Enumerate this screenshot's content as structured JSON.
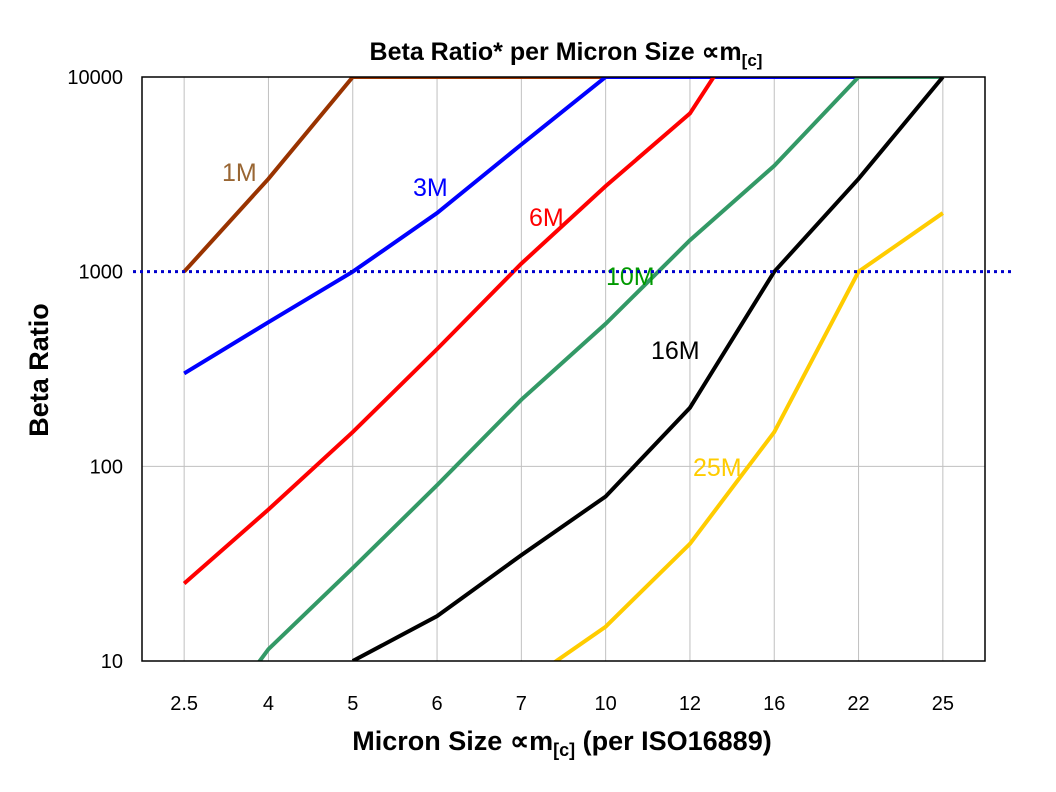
{
  "chart_data": {
    "type": "line",
    "title": {
      "main": "Beta Ratio* per Micron Size ",
      "symbol": "∝m",
      "sub": "[c]"
    },
    "xlabel": {
      "main": "Micron Size ",
      "symbol": "∝m",
      "sub": "[c]",
      "tail": " (per ISO16889)"
    },
    "ylabel": "Beta Ratio",
    "categories": [
      "2.5",
      "4",
      "5",
      "6",
      "7",
      "10",
      "12",
      "16",
      "22",
      "25"
    ],
    "yscale": "log",
    "ylim": [
      10,
      10000
    ],
    "yticks": [
      "10",
      "100",
      "1000",
      "10000"
    ],
    "grid": true,
    "reference_line": {
      "y": 1000,
      "style": "dotted",
      "color": "#0000CC"
    },
    "series": [
      {
        "name": "1M",
        "color": "#993300",
        "label_color": "#996633",
        "values": [
          1000,
          3000,
          10000,
          10000,
          10000,
          10000,
          null,
          null,
          null,
          null
        ]
      },
      {
        "name": "3M",
        "color": "#0000FF",
        "label_color": "#0000FF",
        "values": [
          300,
          550,
          1000,
          2000,
          4500,
          10000,
          10000,
          10000,
          10000,
          10000
        ]
      },
      {
        "name": "6M",
        "color": "#FF0000",
        "label_color": "#FF0000",
        "values": [
          25,
          60,
          150,
          400,
          1100,
          2750,
          6500,
          30000,
          null,
          null
        ]
      },
      {
        "name": "10M",
        "color": "#339966",
        "label_color": "#009900",
        "values": [
          3,
          11.5,
          30,
          80,
          220,
          540,
          1450,
          3500,
          10000,
          10000
        ]
      },
      {
        "name": "16M",
        "color": "#000000",
        "label_color": "#000000",
        "values": [
          null,
          null,
          10,
          17,
          35,
          70,
          200,
          1000,
          3000,
          10000
        ]
      },
      {
        "name": "25M",
        "color": "#FFCC00",
        "label_color": "#FFCC00",
        "values": [
          null,
          null,
          null,
          null,
          7.5,
          15,
          40,
          150,
          1000,
          2000
        ]
      }
    ]
  }
}
